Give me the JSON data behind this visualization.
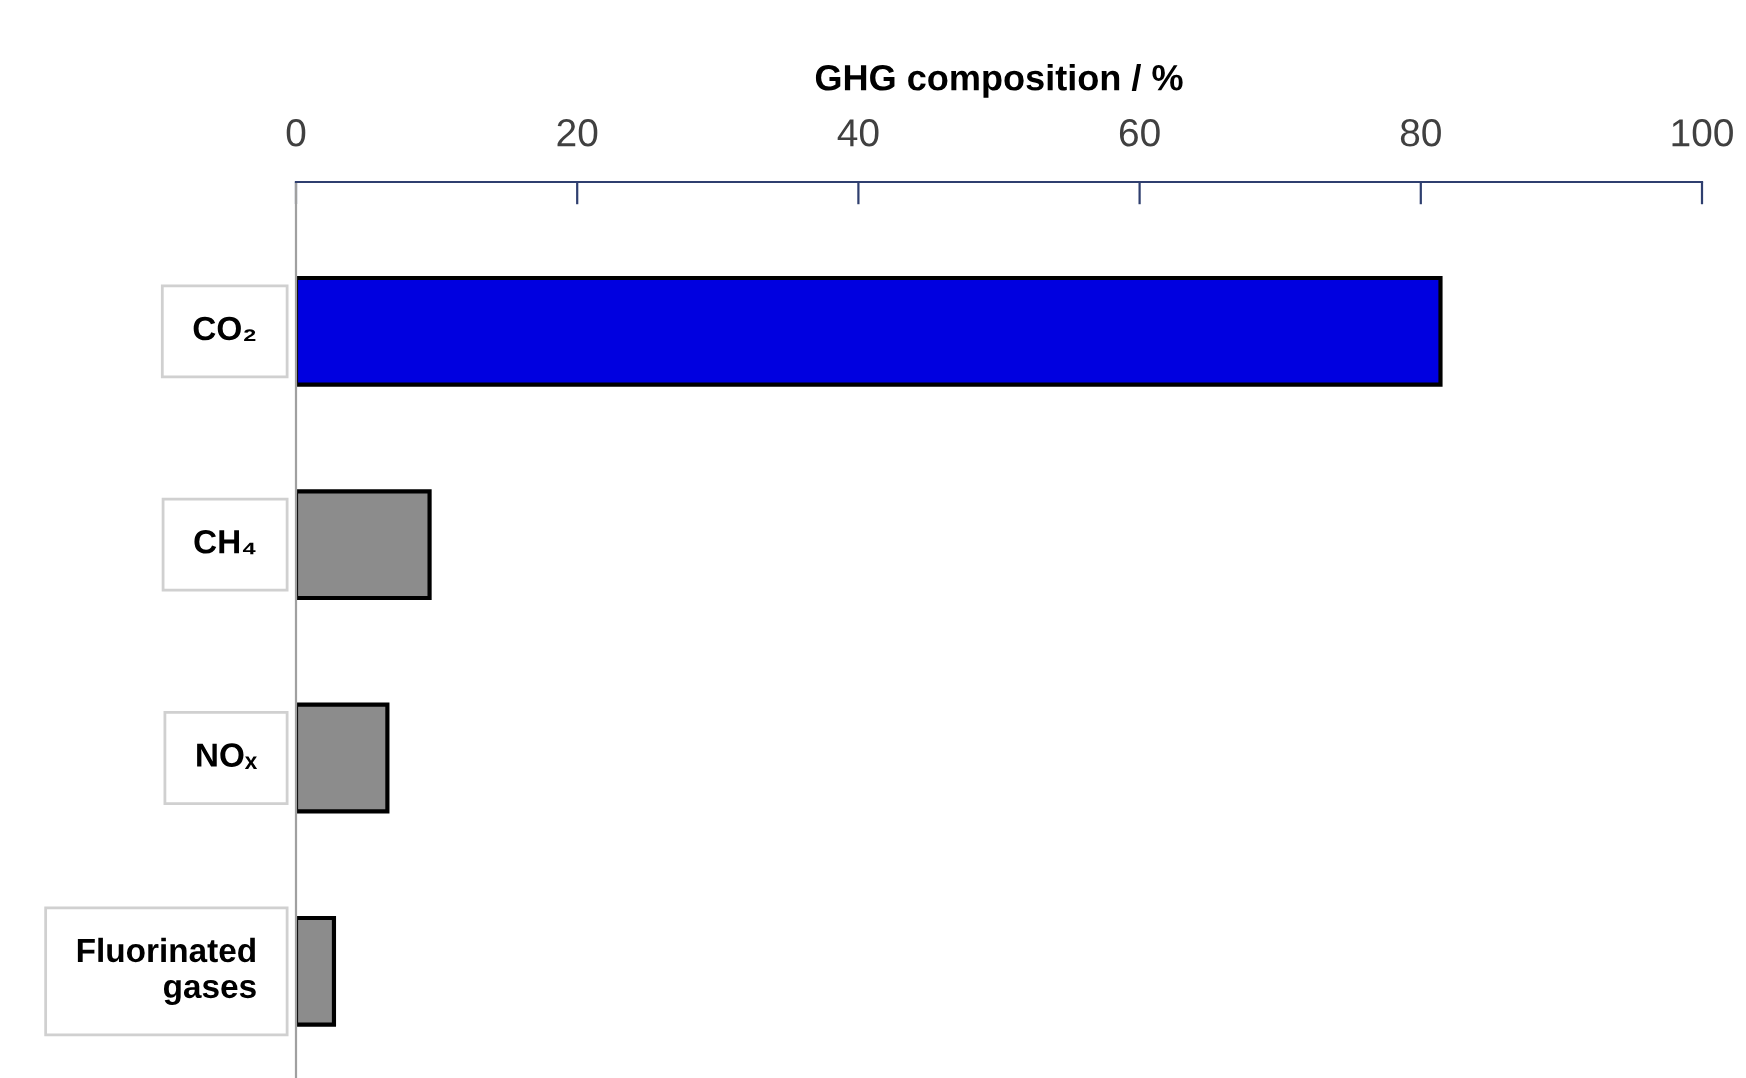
{
  "chart_data": {
    "type": "bar",
    "orientation": "horizontal",
    "xlabel": "GHG composition / %",
    "categories": [
      "CO₂",
      "CH₄",
      "NOₓ",
      "Fluorinated\ngases"
    ],
    "values": [
      81.4,
      9.5,
      6.5,
      2.7
    ],
    "colors": [
      "#0000e0",
      "#8c8c8c",
      "#8c8c8c",
      "#8c8c8c"
    ],
    "xlim": [
      0,
      100
    ],
    "xticks": [
      0,
      20,
      40,
      60,
      80,
      100
    ],
    "grid": false
  }
}
